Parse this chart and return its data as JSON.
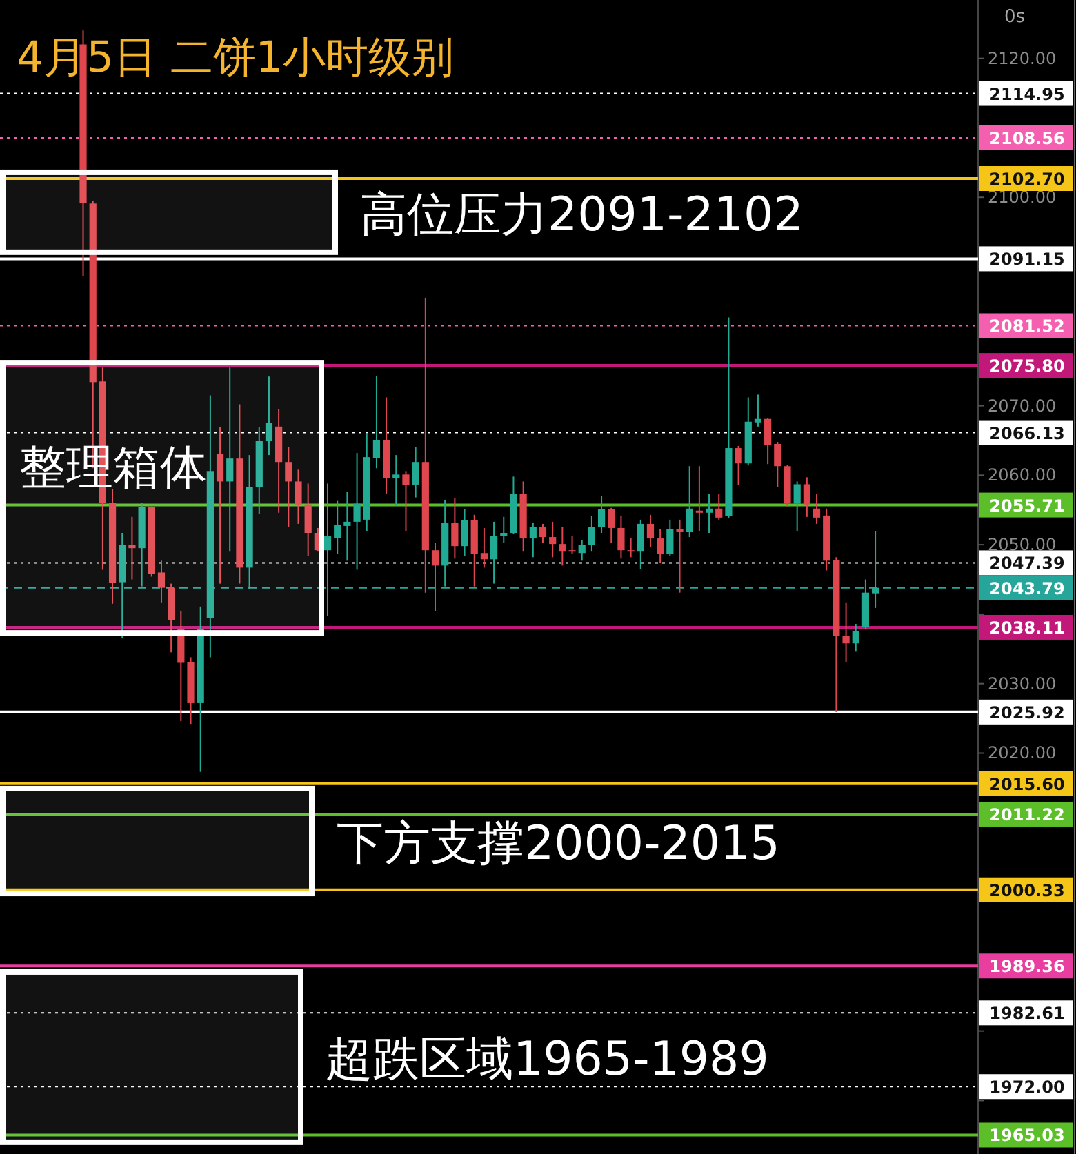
{
  "chart_data": {
    "type": "candlestick",
    "title": "4月5日 二饼1小时级别",
    "annotations": [
      "0s"
    ],
    "tick_labels": "y",
    "categories": [
      null,
      null,
      null,
      null,
      null,
      null,
      null,
      null,
      null,
      null,
      null,
      null,
      null,
      null,
      null,
      null,
      null,
      null,
      null,
      null,
      null,
      null,
      null,
      null,
      null,
      null,
      null,
      null,
      null,
      null,
      null,
      null,
      null,
      null,
      null,
      null,
      null,
      null,
      null,
      null,
      null,
      null,
      null,
      null,
      null,
      null,
      null,
      null,
      null,
      null,
      null,
      null,
      null,
      null,
      null,
      null,
      null,
      null,
      null,
      null,
      null,
      null,
      null,
      null,
      null,
      null,
      null,
      null,
      null,
      null,
      null,
      null,
      null,
      null,
      null,
      null,
      null,
      null,
      null,
      null,
      null,
      null,
      null,
      null,
      null,
      null,
      null,
      null,
      null,
      null,
      null,
      null,
      null,
      null,
      null,
      null,
      null,
      null,
      null,
      null
    ],
    "ohlc": [
      null,
      null,
      null,
      null,
      null,
      null,
      null,
      null,
      [
        2122,
        2124,
        2088.7,
        2099.2
      ],
      [
        2099.1,
        2099.5,
        2061,
        2073.4
      ],
      [
        2073.5,
        2075.5,
        2046.4,
        2056
      ],
      [
        2056,
        2058,
        2041.5,
        2044.5
      ],
      [
        2044.6,
        2051.7,
        2036.5,
        2050
      ],
      [
        2050,
        2054,
        2045,
        2049.5
      ],
      [
        2049.5,
        2056,
        2044,
        2055.4
      ],
      [
        2055.4,
        2055.5,
        2045.4,
        2045.8
      ],
      [
        2046,
        2047.7,
        2041.7,
        2043.8
      ],
      [
        2043.8,
        2044.4,
        2034.5,
        2039.2
      ],
      [
        2037.9,
        2040.5,
        2024.6,
        2033
      ],
      [
        2033.1,
        2033.8,
        2024.2,
        2027.2
      ],
      [
        2027.2,
        2041.1,
        2017.3,
        2037.9
      ],
      [
        2039.4,
        2071.5,
        2033.8,
        2060.6
      ],
      [
        2063.1,
        2066.9,
        2044.4,
        2059.1
      ],
      [
        2059.1,
        2075.5,
        2049,
        2062.4
      ],
      [
        2062.4,
        2070.2,
        2044.4,
        2046.7
      ],
      [
        2046.7,
        2062.9,
        2043.7,
        2058.3
      ],
      [
        2058.3,
        2066.9,
        2054.4,
        2064.9
      ],
      [
        2064.9,
        2074.2,
        2062.9,
        2067.5
      ],
      [
        2067,
        2069.5,
        2054.6,
        2061.9
      ],
      [
        2061.9,
        2064.1,
        2052.6,
        2059.1
      ],
      [
        2059.1,
        2060.8,
        2053,
        2055.8
      ],
      [
        2055.8,
        2058.8,
        2048.4,
        2051.7
      ],
      [
        2051.7,
        2052.4,
        2049,
        2049.2
      ],
      [
        2049.2,
        2058.8,
        2039.7,
        2051.2
      ],
      [
        2051,
        2056.3,
        2048.7,
        2052.8
      ],
      [
        2052.7,
        2057.6,
        2047.7,
        2053.3
      ],
      [
        2053.3,
        2063.2,
        2046.4,
        2055.9
      ],
      [
        2053.6,
        2065.9,
        2052,
        2062.6
      ],
      [
        2062.5,
        2074.3,
        2061,
        2065.1
      ],
      [
        2065.1,
        2071.2,
        2057.3,
        2059.6
      ],
      [
        2059.6,
        2062.9,
        2055.6,
        2060.1
      ],
      [
        2060.1,
        2060.6,
        2052,
        2058.6
      ],
      [
        2058.6,
        2064.1,
        2056.8,
        2061.9
      ],
      [
        2061.9,
        2085.5,
        2043.1,
        2049.2
      ],
      [
        2049.2,
        2050.3,
        2040.4,
        2047
      ],
      [
        2047,
        2056.4,
        2044,
        2053.1
      ],
      [
        2053.1,
        2056.7,
        2048,
        2049.8
      ],
      [
        2049.8,
        2055.1,
        2048.4,
        2053.5
      ],
      [
        2053.5,
        2054.3,
        2044,
        2048.7
      ],
      [
        2048.8,
        2052.4,
        2046.7,
        2047.9
      ],
      [
        2047.9,
        2053.3,
        2044.4,
        2051.3
      ],
      [
        2051.3,
        2054,
        2050.3,
        2051.7
      ],
      [
        2051.7,
        2059.8,
        2051.5,
        2057.3
      ],
      [
        2057.3,
        2059.1,
        2049,
        2050.9
      ],
      [
        2050.9,
        2053.2,
        2048.2,
        2052.5
      ],
      [
        2052.5,
        2053,
        2050.3,
        2051.1
      ],
      [
        2051.1,
        2053.3,
        2048.2,
        2050.1
      ],
      [
        2050.1,
        2052.6,
        2047,
        2049
      ],
      [
        2049.2,
        2051.3,
        2048.7,
        2049
      ],
      [
        2048.8,
        2050.7,
        2047.7,
        2050
      ],
      [
        2050,
        2054.1,
        2049,
        2052.5
      ],
      [
        2052.5,
        2057,
        2051.7,
        2055.1
      ],
      [
        2055.1,
        2055.3,
        2050.3,
        2052.4
      ],
      [
        2052.4,
        2054.2,
        2048,
        2049.2
      ],
      [
        2049.2,
        2050.9,
        2048.2,
        2049
      ],
      [
        2049,
        2053.6,
        2046.5,
        2053
      ],
      [
        2053,
        2054.3,
        2049.7,
        2050.9
      ],
      [
        2050.9,
        2052.2,
        2047.4,
        2048.7
      ],
      [
        2048.7,
        2053.6,
        2048.4,
        2052.2
      ],
      [
        2052.2,
        2053.6,
        2043.1,
        2051.8
      ],
      [
        2051.8,
        2061.3,
        2051.1,
        2055.2
      ],
      [
        2054.9,
        2061.3,
        2052,
        2054.6
      ],
      [
        2054.6,
        2057.3,
        2051.7,
        2055.2
      ],
      [
        2055.2,
        2057.3,
        2053.6,
        2053.9
      ],
      [
        2054.1,
        2082.7,
        2053.8,
        2063.9
      ],
      [
        2063.9,
        2064.2,
        2058.6,
        2061.7
      ],
      [
        2061.7,
        2071.2,
        2061.4,
        2067.7
      ],
      [
        2067.6,
        2071.6,
        2067,
        2068.1
      ],
      [
        2068.1,
        2068.2,
        2061.6,
        2064.4
      ],
      [
        2064.5,
        2064.8,
        2058.3,
        2061.3
      ],
      [
        2061.3,
        2061.5,
        2055.5,
        2055.9
      ],
      [
        2055.9,
        2059.1,
        2052,
        2058.7
      ],
      [
        2058.7,
        2059.7,
        2054,
        2055.8
      ],
      [
        2055.2,
        2057.3,
        2053,
        2053.9
      ],
      [
        2054.2,
        2055.2,
        2046.3,
        2047.7
      ],
      [
        2047.8,
        2048.2,
        2025.9,
        2036.9
      ],
      [
        2036.9,
        2041.7,
        2033.1,
        2035.8
      ],
      [
        2035.8,
        2038.6,
        2034.6,
        2037.6
      ],
      [
        2038.1,
        2045,
        2037.8,
        2043.1
      ],
      [
        2043,
        2052,
        2040.9,
        2043.8
      ],
      null,
      null,
      null,
      null,
      null,
      null,
      null,
      null,
      null,
      null
    ],
    "colors": [
      null,
      null,
      null,
      null,
      null,
      null,
      null,
      null,
      "#e0464e",
      "#e0464e",
      "#e0464e",
      "#e0464e",
      "#22ab94",
      "#e0464e",
      "#22ab94",
      "#e0464e",
      "#e0464e",
      "#e0464e",
      "#e0464e",
      "#e0464e",
      "#22ab94",
      "#22ab94",
      "#e0464e",
      "#22ab94",
      "#e0464e",
      "#22ab94",
      "#22ab94",
      "#22ab94",
      "#e0464e",
      "#e0464e",
      "#e0464e",
      "#e0464e",
      "#e0464e",
      "#22ab94",
      "#22ab94",
      "#22ab94",
      "#22ab94",
      "#22ab94",
      "#22ab94",
      "#e0464e",
      "#22ab94",
      "#e0464e",
      "#22ab94",
      "#e0464e",
      "#e0464e",
      "#22ab94",
      "#e0464e",
      "#22ab94",
      "#e0464e",
      "#e0464e",
      "#22ab94",
      "#22ab94",
      "#22ab94",
      "#e0464e",
      "#22ab94",
      "#e0464e",
      "#e0464e",
      "#e0464e",
      "#e0464e",
      "#22ab94",
      "#22ab94",
      "#22ab94",
      "#e0464e",
      "#e0464e",
      "#e0464e",
      "#22ab94",
      "#e0464e",
      "#e0464e",
      "#22ab94",
      "#e0464e",
      "#22ab94",
      "#e0464e",
      "#22ab94",
      "#e0464e",
      "#22ab94",
      "#e0464e",
      "#22ab94",
      "#22ab94",
      "#e0464e",
      "#e0464e",
      "#e0464e",
      "#22ab94",
      "#e0464e",
      "#e0464e",
      "#e0464e",
      "#e0464e",
      "#e0464e",
      "#22ab94",
      "#22ab94",
      "#22ab94",
      null,
      null,
      null,
      null,
      null,
      null,
      null,
      null,
      null,
      null
    ],
    "ylim": [
      1962.3,
      2128.4
    ],
    "yticks": [
      {
        "value": 2120,
        "label": "2120.00"
      },
      {
        "value": 2110,
        "label": null
      },
      {
        "value": 2100,
        "label": "2100.00"
      },
      {
        "value": 2090,
        "label": null
      },
      {
        "value": 2080,
        "label": null
      },
      {
        "value": 2070,
        "label": "2070.00"
      },
      {
        "value": 2060,
        "label": "2060.00"
      },
      {
        "value": 2050,
        "label": "2050.00"
      },
      {
        "value": 2040,
        "label": null
      },
      {
        "value": 2030,
        "label": "2030.00"
      },
      {
        "value": 2020,
        "label": "2020.00"
      },
      {
        "value": 2010,
        "label": null
      },
      {
        "value": 2000,
        "label": null
      },
      {
        "value": 1990,
        "label": null
      },
      {
        "value": 1980,
        "label": null
      },
      {
        "value": 1970,
        "label": null
      }
    ],
    "ref_lines": [
      {
        "axis": "y",
        "value": 2114.95,
        "label": "2114.95",
        "color": "#ffffff",
        "line_style": "dotted"
      },
      {
        "axis": "y",
        "value": 2108.56,
        "label": "2108.56",
        "color": "#f45fb0",
        "line_style": "dotted"
      },
      {
        "axis": "y",
        "value": 2102.7,
        "label": "2102.70",
        "color": "#f5c518",
        "line_style": "solid"
      },
      {
        "axis": "y",
        "value": 2091.15,
        "label": "2091.15",
        "color": "#ffffff",
        "line_style": "solid"
      },
      {
        "axis": "y",
        "value": 2081.52,
        "label": "2081.52",
        "color": "#f45fb0",
        "line_style": "dotted"
      },
      {
        "axis": "y",
        "value": 2075.8,
        "label": "2075.80",
        "color": "#c2187a",
        "line_style": "solid"
      },
      {
        "axis": "y",
        "value": 2066.13,
        "label": "2066.13",
        "color": "#ffffff",
        "line_style": "dotted"
      },
      {
        "axis": "y",
        "value": 2055.71,
        "label": "2055.71",
        "color": "#5cbf2a",
        "line_style": "solid"
      },
      {
        "axis": "y",
        "value": 2047.39,
        "label": "2047.39",
        "color": "#ffffff",
        "line_style": "dotted"
      },
      {
        "axis": "y",
        "value": 2043.79,
        "label": "2043.79",
        "color": "#26a69a",
        "line_style": "dashed"
      },
      {
        "axis": "y",
        "value": 2038.11,
        "label": "2038.11",
        "color": "#c2187a",
        "line_style": "solid"
      },
      {
        "axis": "y",
        "value": 2025.92,
        "label": "2025.92",
        "color": "#ffffff",
        "line_style": "solid"
      },
      {
        "axis": "y",
        "value": 2015.6,
        "label": "2015.60",
        "color": "#f5c518",
        "line_style": "solid"
      },
      {
        "axis": "y",
        "value": 2011.22,
        "label": "2011.22",
        "color": "#5cbf2a",
        "line_style": "solid"
      },
      {
        "axis": "y",
        "value": 2000.33,
        "label": "2000.33",
        "color": "#f5c518",
        "line_style": "solid"
      },
      {
        "axis": "y",
        "value": 1989.36,
        "label": "1989.36",
        "color": "#e83e9f",
        "line_style": "solid"
      },
      {
        "axis": "y",
        "value": 1982.61,
        "label": "1982.61",
        "color": "#ffffff",
        "line_style": "dotted"
      },
      {
        "axis": "y",
        "value": 1972.0,
        "label": "1972.00",
        "color": "#ffffff",
        "line_style": "dotted"
      },
      {
        "axis": "y",
        "value": 1965.03,
        "label": "1965.03",
        "color": "#5cbf2a",
        "line_style": "solid"
      }
    ],
    "bands": [
      {
        "axis": "y",
        "from": 2092.1,
        "to": 2103.6,
        "label": "高位压力2091-2102",
        "color": "#ffffff"
      },
      {
        "axis": "y",
        "from": 2037.3,
        "to": 2076.2,
        "label": "整理箱体",
        "color": "#ffffff"
      },
      {
        "axis": "y",
        "from": 1999.8,
        "to": 2014.9,
        "label": "下方支撑2000-2015",
        "color": "#ffffff"
      },
      {
        "axis": "y",
        "from": 1964,
        "to": 1988.5,
        "label": "超跌区域1965-1989",
        "color": "#ffffff"
      }
    ]
  }
}
